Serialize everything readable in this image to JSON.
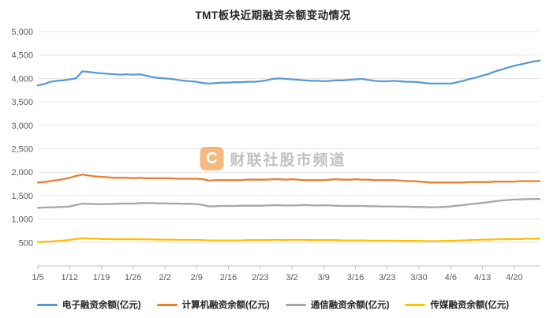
{
  "title": "TMT板块近期融资余额变动情况",
  "watermark": {
    "logo": "C",
    "text": "财联社股市频道"
  },
  "chart_data": {
    "type": "line",
    "grid": true,
    "legend_position": "bottom",
    "points_count": 80,
    "label_every": 5,
    "x_labels": [
      "1/5",
      "1/12",
      "1/19",
      "1/26",
      "2/2",
      "2/9",
      "2/16",
      "2/23",
      "3/2",
      "3/9",
      "3/16",
      "3/23",
      "3/30",
      "4/6",
      "4/13",
      "4/20"
    ],
    "ylim": [
      0,
      5000
    ],
    "y_tick_step": 500,
    "y_tick_labels": [
      "500",
      "1,000",
      "1,500",
      "2,000",
      "2,500",
      "3,000",
      "3,500",
      "4,000",
      "4,500",
      "5,000"
    ],
    "series": [
      {
        "name": "电子融资余额(亿元)",
        "color": "#5B9BD5",
        "values": [
          3850,
          3880,
          3930,
          3950,
          3960,
          3980,
          4000,
          4150,
          4140,
          4120,
          4110,
          4100,
          4090,
          4080,
          4090,
          4080,
          4090,
          4060,
          4030,
          4010,
          4000,
          3990,
          3970,
          3950,
          3940,
          3930,
          3900,
          3890,
          3900,
          3910,
          3910,
          3920,
          3920,
          3930,
          3930,
          3940,
          3960,
          3990,
          4000,
          3990,
          3980,
          3970,
          3960,
          3950,
          3950,
          3940,
          3950,
          3960,
          3960,
          3970,
          3980,
          3990,
          3970,
          3950,
          3940,
          3940,
          3950,
          3940,
          3930,
          3930,
          3920,
          3900,
          3890,
          3890,
          3890,
          3890,
          3920,
          3950,
          3990,
          4020,
          4060,
          4100,
          4150,
          4190,
          4230,
          4270,
          4300,
          4330,
          4360,
          4380
        ]
      },
      {
        "name": "计算机融资余额(亿元)",
        "color": "#ED7D31",
        "values": [
          1780,
          1790,
          1810,
          1830,
          1850,
          1880,
          1920,
          1950,
          1930,
          1910,
          1900,
          1890,
          1880,
          1880,
          1880,
          1870,
          1880,
          1870,
          1870,
          1870,
          1870,
          1870,
          1860,
          1860,
          1860,
          1860,
          1850,
          1820,
          1830,
          1830,
          1830,
          1830,
          1830,
          1840,
          1840,
          1840,
          1840,
          1850,
          1850,
          1840,
          1850,
          1840,
          1830,
          1830,
          1830,
          1830,
          1840,
          1850,
          1840,
          1840,
          1850,
          1840,
          1840,
          1830,
          1830,
          1830,
          1830,
          1820,
          1810,
          1810,
          1800,
          1790,
          1780,
          1780,
          1780,
          1780,
          1780,
          1780,
          1790,
          1790,
          1790,
          1790,
          1800,
          1800,
          1800,
          1800,
          1810,
          1810,
          1810,
          1810
        ]
      },
      {
        "name": "通信融资余额(亿元)",
        "color": "#A6A6A6",
        "values": [
          1240,
          1245,
          1250,
          1255,
          1260,
          1270,
          1300,
          1330,
          1325,
          1320,
          1320,
          1320,
          1325,
          1330,
          1330,
          1330,
          1340,
          1340,
          1340,
          1335,
          1335,
          1330,
          1330,
          1325,
          1325,
          1320,
          1300,
          1270,
          1275,
          1280,
          1280,
          1280,
          1285,
          1285,
          1285,
          1285,
          1290,
          1295,
          1295,
          1290,
          1290,
          1295,
          1300,
          1295,
          1290,
          1295,
          1290,
          1285,
          1280,
          1280,
          1280,
          1280,
          1275,
          1275,
          1270,
          1270,
          1270,
          1265,
          1265,
          1260,
          1260,
          1255,
          1250,
          1255,
          1260,
          1270,
          1285,
          1300,
          1315,
          1330,
          1345,
          1360,
          1380,
          1395,
          1405,
          1415,
          1420,
          1425,
          1430,
          1430
        ]
      },
      {
        "name": "传媒融资余额(亿元)",
        "color": "#FFC000",
        "values": [
          510,
          515,
          520,
          530,
          540,
          555,
          575,
          590,
          585,
          580,
          575,
          575,
          570,
          570,
          570,
          570,
          570,
          565,
          565,
          560,
          560,
          560,
          555,
          555,
          555,
          555,
          550,
          545,
          545,
          545,
          545,
          545,
          545,
          550,
          550,
          550,
          550,
          555,
          555,
          550,
          555,
          555,
          555,
          550,
          550,
          550,
          550,
          550,
          545,
          545,
          545,
          545,
          540,
          540,
          540,
          540,
          540,
          535,
          535,
          535,
          535,
          530,
          530,
          530,
          535,
          535,
          540,
          545,
          550,
          555,
          560,
          560,
          565,
          570,
          570,
          575,
          575,
          580,
          580,
          580
        ]
      }
    ]
  }
}
